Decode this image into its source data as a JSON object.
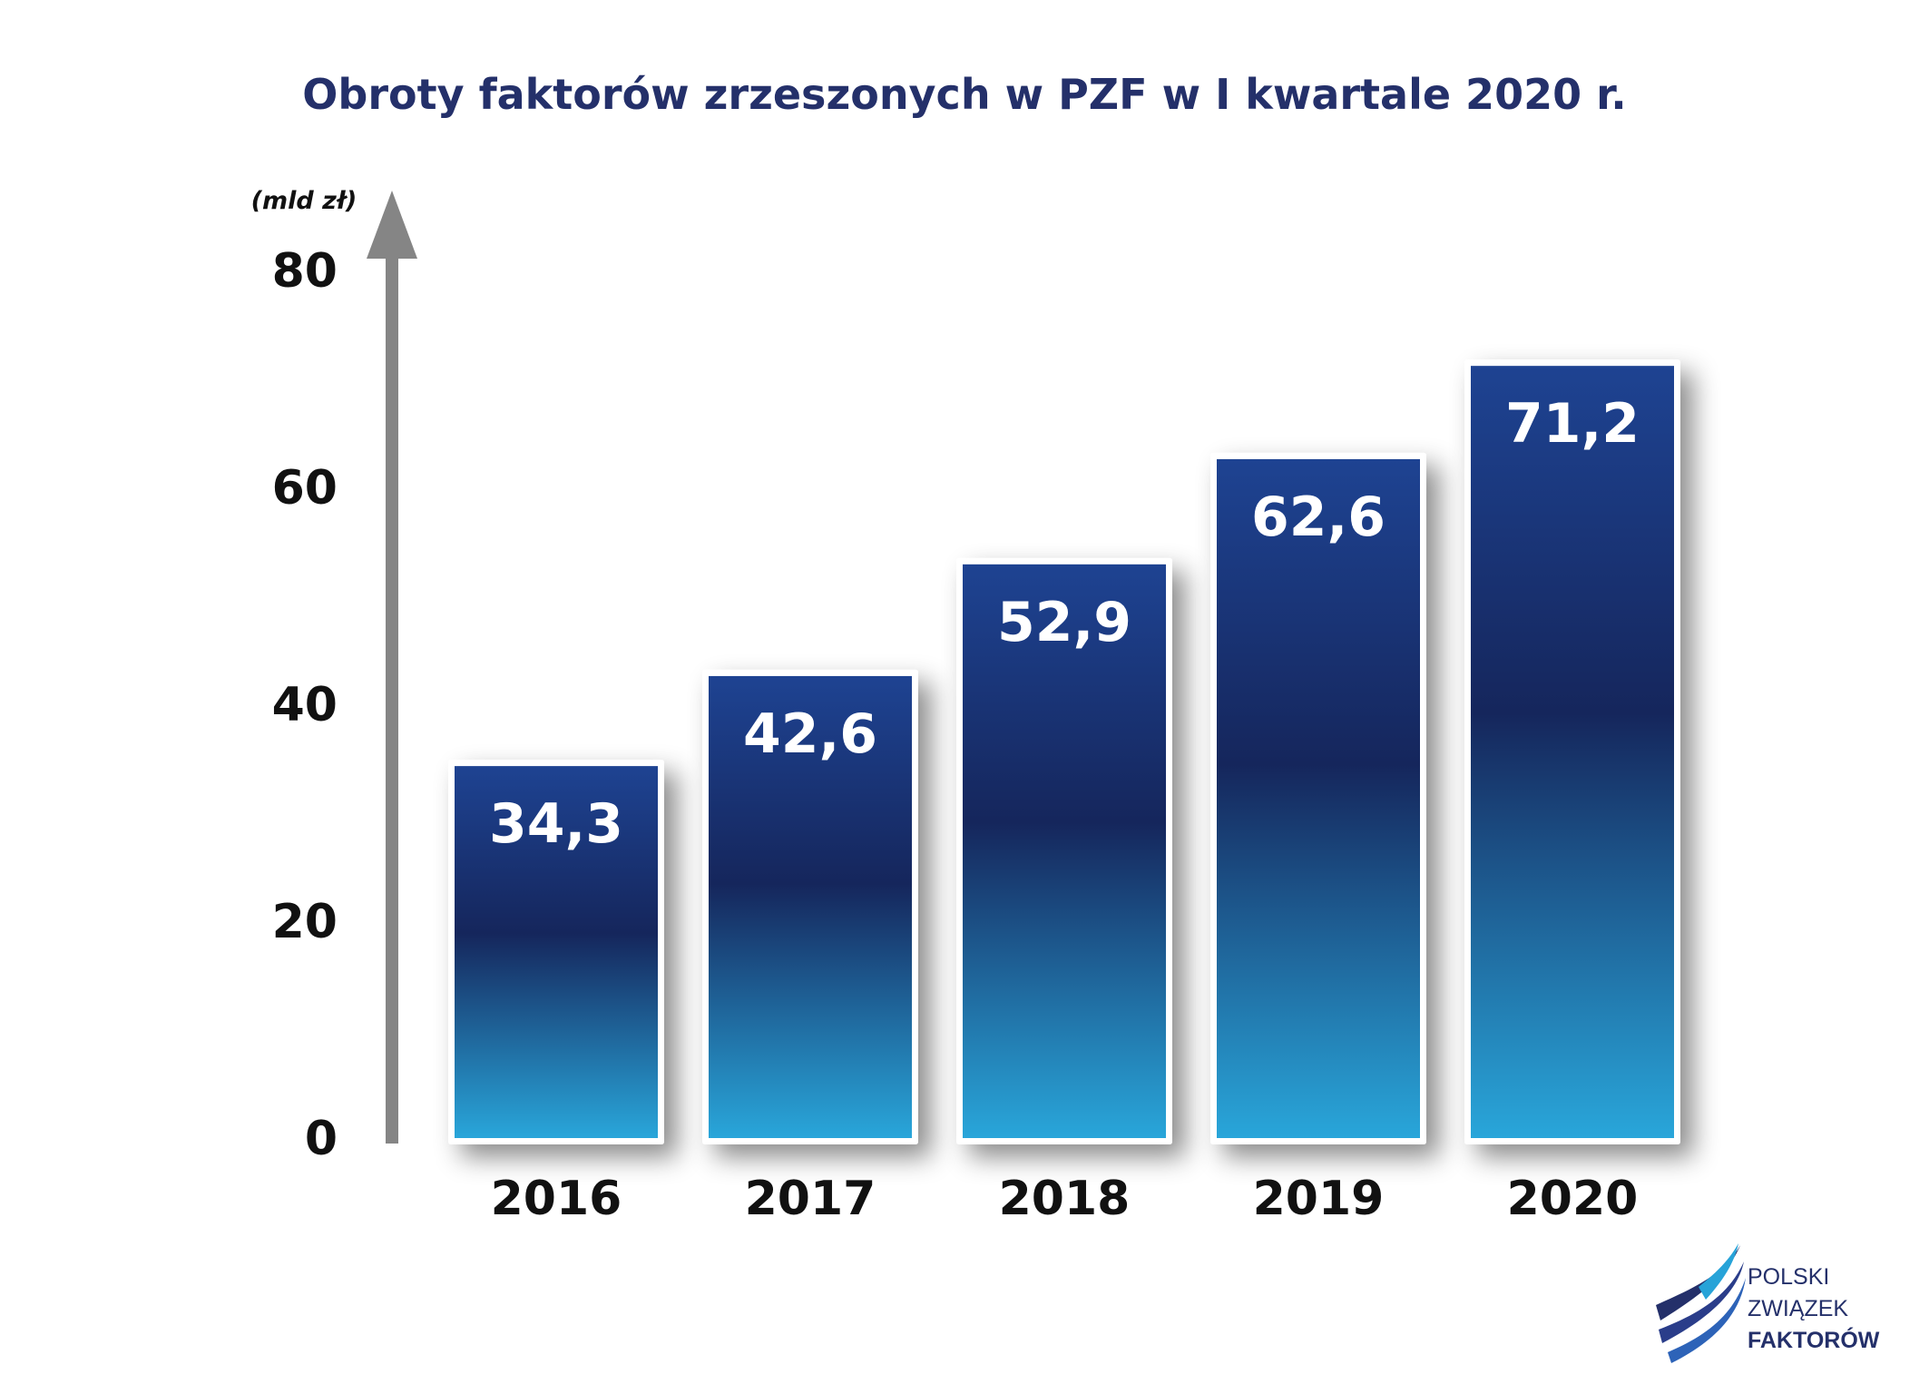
{
  "chart_data": {
    "type": "bar",
    "title": "Obroty faktorów zrzeszonych w PZF w I kwartale 2020 r.",
    "ylabel": "(mld zł)",
    "xlabel": "",
    "categories": [
      "2016",
      "2017",
      "2018",
      "2019",
      "2020"
    ],
    "values": [
      34.3,
      42.6,
      52.9,
      62.6,
      71.2
    ],
    "value_labels": [
      "34,3",
      "42,6",
      "52,9",
      "62,6",
      "71,2"
    ],
    "yticks": [
      "0",
      "20",
      "40",
      "60",
      "80"
    ],
    "ylim": [
      0,
      80
    ],
    "grid": false,
    "colors": {
      "bar_top": "#1a3b8a",
      "bar_mid": "#15265c",
      "bar_bottom": "#27a3d8",
      "axis": "#858585",
      "title": "#24306a"
    }
  },
  "logo": {
    "line1": "POLSKI",
    "line2": "ZWIĄZEK",
    "line3": "FAKTORÓW"
  }
}
